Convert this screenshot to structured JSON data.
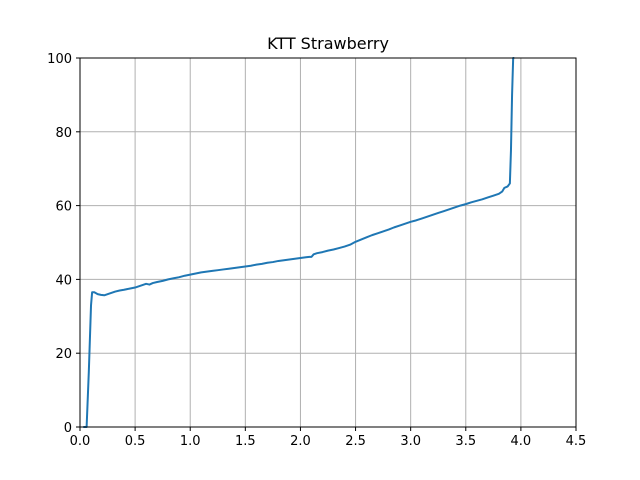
{
  "chart_data": {
    "type": "line",
    "title": "KTT Strawberry",
    "xlabel": "",
    "ylabel": "",
    "xlim": [
      0,
      4.5
    ],
    "ylim": [
      0,
      100
    ],
    "grid": true,
    "x_ticks": [
      0,
      0.5,
      1.0,
      1.5,
      2.0,
      2.5,
      3.0,
      3.5,
      4.0,
      4.5
    ],
    "x_tick_labels": [
      "0.0",
      "0.5",
      "1.0",
      "1.5",
      "2.0",
      "2.5",
      "3.0",
      "3.5",
      "4.0",
      "4.5"
    ],
    "y_ticks": [
      0,
      20,
      40,
      60,
      80,
      100
    ],
    "y_tick_labels": [
      "0",
      "20",
      "40",
      "60",
      "80",
      "100"
    ],
    "series": [
      {
        "color": "#1f77b4",
        "x": [
          0.03,
          0.06,
          0.08,
          0.1,
          0.11,
          0.13,
          0.16,
          0.19,
          0.22,
          0.25,
          0.28,
          0.32,
          0.36,
          0.4,
          0.45,
          0.5,
          0.55,
          0.6,
          0.63,
          0.66,
          0.7,
          0.75,
          0.8,
          0.85,
          0.9,
          0.95,
          1.0,
          1.05,
          1.1,
          1.15,
          1.2,
          1.25,
          1.3,
          1.35,
          1.4,
          1.45,
          1.5,
          1.55,
          1.6,
          1.65,
          1.7,
          1.75,
          1.8,
          1.85,
          1.9,
          1.95,
          2.0,
          2.05,
          2.08,
          2.1,
          2.12,
          2.15,
          2.2,
          2.25,
          2.3,
          2.35,
          2.4,
          2.45,
          2.5,
          2.55,
          2.6,
          2.65,
          2.7,
          2.75,
          2.8,
          2.85,
          2.9,
          2.95,
          3.0,
          3.05,
          3.1,
          3.15,
          3.2,
          3.25,
          3.3,
          3.35,
          3.4,
          3.45,
          3.5,
          3.55,
          3.6,
          3.65,
          3.7,
          3.75,
          3.8,
          3.83,
          3.85,
          3.88,
          3.9,
          3.91,
          3.92,
          3.93,
          3.94
        ],
        "y": [
          0,
          0,
          15,
          33,
          36.5,
          36.5,
          36,
          35.8,
          35.7,
          36,
          36.3,
          36.7,
          37,
          37.2,
          37.5,
          37.8,
          38.3,
          38.8,
          38.6,
          39,
          39.3,
          39.6,
          40,
          40.3,
          40.6,
          41,
          41.3,
          41.6,
          41.9,
          42.1,
          42.3,
          42.5,
          42.7,
          42.9,
          43.1,
          43.3,
          43.5,
          43.7,
          44,
          44.2,
          44.5,
          44.7,
          45,
          45.2,
          45.4,
          45.6,
          45.8,
          46,
          46.1,
          46.1,
          46.8,
          47.1,
          47.4,
          47.8,
          48.1,
          48.5,
          48.9,
          49.4,
          50.2,
          50.8,
          51.4,
          52,
          52.5,
          53,
          53.5,
          54.1,
          54.6,
          55.1,
          55.6,
          56,
          56.5,
          57,
          57.5,
          58,
          58.5,
          59,
          59.5,
          60,
          60.4,
          60.9,
          61.3,
          61.7,
          62.2,
          62.7,
          63.2,
          63.8,
          64.8,
          65.2,
          66,
          75,
          90,
          100,
          100
        ]
      }
    ]
  }
}
